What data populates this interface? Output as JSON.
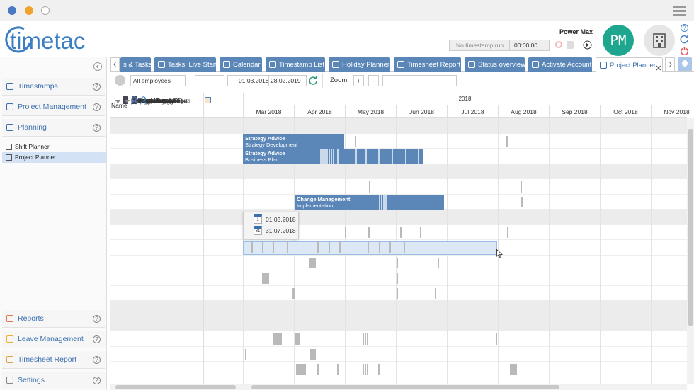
{
  "header": {
    "logo": "timetac",
    "user_name": "Power Max",
    "avatar": "PM",
    "timestamp_status": "No timestamp run...",
    "timer": "00:00:00",
    "help": "?"
  },
  "sidebar": {
    "top": [
      "Timestamps",
      "Project Management",
      "Planning"
    ],
    "planning_items": [
      "Shift Planner",
      "Project Planner"
    ],
    "bottom": [
      "Reports",
      "Leave Management",
      "Timesheet Report",
      "Settings"
    ]
  },
  "tabs": [
    "s & Tasks",
    "Tasks: Live Start",
    "Calendar",
    "Timestamp List",
    "Holiday Planner",
    "Timesheet Report",
    "Status overview",
    "Activate Account",
    "Project Planner"
  ],
  "toolbar": {
    "employee_filter": "All employees",
    "date_from": "01.03.2018",
    "date_to": "28.02.2019",
    "zoom_label": "Zoom:",
    "zoom_in": "+",
    "zoom_out": "-"
  },
  "planner": {
    "name_header": "Name",
    "year": "2018",
    "months": [
      "Mar 2018",
      "Apr 2018",
      "May 2018",
      "Jun 2018",
      "Jul 2018",
      "Aug 2018",
      "Sep 2018",
      "Oct 2018",
      "Nov 2018"
    ],
    "groups": [
      {
        "name": "Strategy Consulting",
        "members": [
          "Robinson Bret",
          "Thompson Grace"
        ]
      },
      {
        "name": "Change Management",
        "members": [
          "Taylor Jay",
          "Wright Carrie"
        ]
      },
      {
        "name": "IT-Consulting",
        "members": [
          "Williams Kiara",
          "Johnson Earl",
          "Roberts Jim",
          "Walker Maggie",
          "Stevans Collin"
        ]
      },
      {
        "name": "Office",
        "subgroups": [
          {
            "name": "Marketing & PR",
            "members": [
              "White Lara",
              "Edwards Gerald"
            ]
          }
        ],
        "members": [
          "Power Max"
        ]
      }
    ],
    "bars": [
      {
        "title": "Strategy Advice",
        "subtitle": "Strategy Development"
      },
      {
        "title": "Strategy Advice",
        "subtitle": "Business Plan"
      },
      {
        "title": "Change Management",
        "subtitle": "Implementation"
      }
    ],
    "tooltip": {
      "start_day": "1",
      "start": "01.03.2018",
      "end_day": "31",
      "end": "31.07.2018"
    }
  }
}
